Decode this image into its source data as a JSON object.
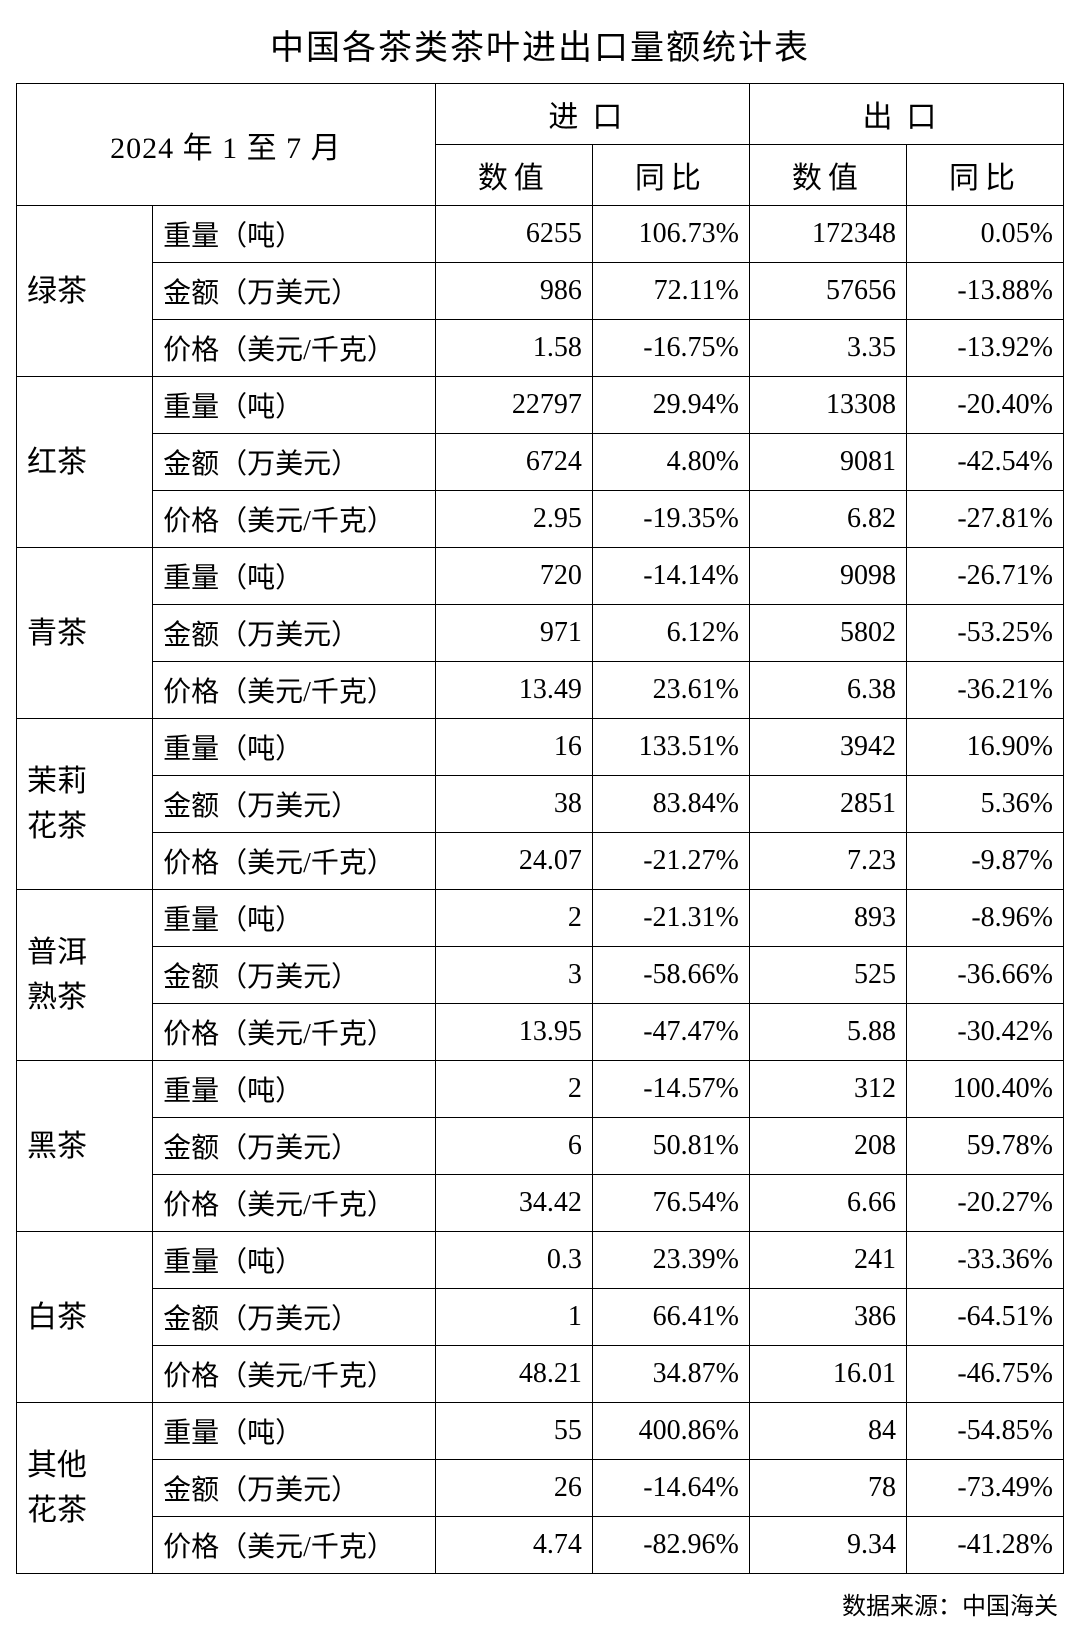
{
  "title": "中国各茶类茶叶进出口量额统计表",
  "period": "2024 年 1 至 7 月",
  "source": "数据来源：中国海关",
  "groups": {
    "import": "进口",
    "export": "出口"
  },
  "subs": {
    "value": "数值",
    "yoy": "同比"
  },
  "metrics": {
    "weight": "重量（吨）",
    "amount": "金额（万美元）",
    "price": "价格（美元/千克）"
  },
  "styling": {
    "font_family": "SimSun/宋体 serif",
    "title_fontsize_pt": 26,
    "cell_fontsize_pt": 21,
    "border_color": "#000000",
    "background_color": "#ffffff",
    "text_color": "#000000",
    "number_align": "right",
    "label_align": "left",
    "header_align": "center"
  },
  "categories": [
    {
      "name": "绿茶",
      "rows": [
        {
          "metric": "weight",
          "imp_v": "6255",
          "imp_y": "106.73%",
          "exp_v": "172348",
          "exp_y": "0.05%"
        },
        {
          "metric": "amount",
          "imp_v": "986",
          "imp_y": "72.11%",
          "exp_v": "57656",
          "exp_y": "-13.88%"
        },
        {
          "metric": "price",
          "imp_v": "1.58",
          "imp_y": "-16.75%",
          "exp_v": "3.35",
          "exp_y": "-13.92%"
        }
      ]
    },
    {
      "name": "红茶",
      "rows": [
        {
          "metric": "weight",
          "imp_v": "22797",
          "imp_y": "29.94%",
          "exp_v": "13308",
          "exp_y": "-20.40%"
        },
        {
          "metric": "amount",
          "imp_v": "6724",
          "imp_y": "4.80%",
          "exp_v": "9081",
          "exp_y": "-42.54%"
        },
        {
          "metric": "price",
          "imp_v": "2.95",
          "imp_y": "-19.35%",
          "exp_v": "6.82",
          "exp_y": "-27.81%"
        }
      ]
    },
    {
      "name": "青茶",
      "rows": [
        {
          "metric": "weight",
          "imp_v": "720",
          "imp_y": "-14.14%",
          "exp_v": "9098",
          "exp_y": "-26.71%"
        },
        {
          "metric": "amount",
          "imp_v": "971",
          "imp_y": "6.12%",
          "exp_v": "5802",
          "exp_y": "-53.25%"
        },
        {
          "metric": "price",
          "imp_v": "13.49",
          "imp_y": "23.61%",
          "exp_v": "6.38",
          "exp_y": "-36.21%"
        }
      ]
    },
    {
      "name": "茉莉\n花茶",
      "rows": [
        {
          "metric": "weight",
          "imp_v": "16",
          "imp_y": "133.51%",
          "exp_v": "3942",
          "exp_y": "16.90%"
        },
        {
          "metric": "amount",
          "imp_v": "38",
          "imp_y": "83.84%",
          "exp_v": "2851",
          "exp_y": "5.36%"
        },
        {
          "metric": "price",
          "imp_v": "24.07",
          "imp_y": "-21.27%",
          "exp_v": "7.23",
          "exp_y": "-9.87%"
        }
      ]
    },
    {
      "name": "普洱\n熟茶",
      "rows": [
        {
          "metric": "weight",
          "imp_v": "2",
          "imp_y": "-21.31%",
          "exp_v": "893",
          "exp_y": "-8.96%"
        },
        {
          "metric": "amount",
          "imp_v": "3",
          "imp_y": "-58.66%",
          "exp_v": "525",
          "exp_y": "-36.66%"
        },
        {
          "metric": "price",
          "imp_v": "13.95",
          "imp_y": "-47.47%",
          "exp_v": "5.88",
          "exp_y": "-30.42%"
        }
      ]
    },
    {
      "name": "黑茶",
      "rows": [
        {
          "metric": "weight",
          "imp_v": "2",
          "imp_y": "-14.57%",
          "exp_v": "312",
          "exp_y": "100.40%"
        },
        {
          "metric": "amount",
          "imp_v": "6",
          "imp_y": "50.81%",
          "exp_v": "208",
          "exp_y": "59.78%"
        },
        {
          "metric": "price",
          "imp_v": "34.42",
          "imp_y": "76.54%",
          "exp_v": "6.66",
          "exp_y": "-20.27%"
        }
      ]
    },
    {
      "name": "白茶",
      "rows": [
        {
          "metric": "weight",
          "imp_v": "0.3",
          "imp_y": "23.39%",
          "exp_v": "241",
          "exp_y": "-33.36%"
        },
        {
          "metric": "amount",
          "imp_v": "1",
          "imp_y": "66.41%",
          "exp_v": "386",
          "exp_y": "-64.51%"
        },
        {
          "metric": "price",
          "imp_v": "48.21",
          "imp_y": "34.87%",
          "exp_v": "16.01",
          "exp_y": "-46.75%"
        }
      ]
    },
    {
      "name": "其他\n花茶",
      "rows": [
        {
          "metric": "weight",
          "imp_v": "55",
          "imp_y": "400.86%",
          "exp_v": "84",
          "exp_y": "-54.85%"
        },
        {
          "metric": "amount",
          "imp_v": "26",
          "imp_y": "-14.64%",
          "exp_v": "78",
          "exp_y": "-73.49%"
        },
        {
          "metric": "price",
          "imp_v": "4.74",
          "imp_y": "-82.96%",
          "exp_v": "9.34",
          "exp_y": "-41.28%"
        }
      ]
    }
  ]
}
